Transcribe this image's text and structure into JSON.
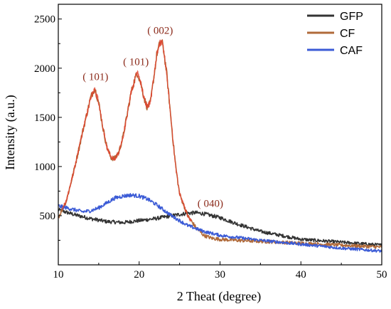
{
  "chart_data": {
    "type": "line",
    "xlabel": "2 Theat (degree)",
    "ylabel": "Intensity (a.u.)",
    "xlim": [
      10,
      50
    ],
    "ylim": [
      0,
      2650
    ],
    "x_ticks": [
      10,
      20,
      30,
      40,
      50
    ],
    "y_ticks": [
      500,
      1000,
      1500,
      2000,
      2500
    ],
    "grid": false,
    "legend_position": "top-right",
    "series": [
      {
        "name": "GFP",
        "color": "#333333",
        "x": [
          10,
          12,
          14,
          16,
          18,
          20,
          22,
          24,
          26,
          27,
          28,
          30,
          32,
          35,
          40,
          45,
          50
        ],
        "y": [
          560,
          510,
          470,
          440,
          430,
          450,
          470,
          500,
          525,
          530,
          520,
          480,
          420,
          340,
          260,
          230,
          200
        ]
      },
      {
        "name": "CF",
        "color": "#b06a3a",
        "x": [
          10,
          11,
          12,
          13,
          14,
          14.5,
          15,
          15.5,
          16,
          16.5,
          17,
          17.5,
          18,
          18.5,
          19,
          19.5,
          19.8,
          20.2,
          20.6,
          21,
          21.4,
          21.8,
          22.2,
          22.6,
          22.8,
          23,
          23.4,
          23.8,
          24.2,
          24.6,
          25,
          26,
          27,
          28,
          29,
          30,
          32,
          35,
          40,
          45,
          50
        ],
        "y": [
          480,
          650,
          980,
          1350,
          1700,
          1800,
          1650,
          1400,
          1200,
          1090,
          1080,
          1150,
          1300,
          1520,
          1750,
          1900,
          1950,
          1850,
          1700,
          1600,
          1650,
          1900,
          2150,
          2260,
          2270,
          2200,
          1950,
          1600,
          1250,
          950,
          720,
          500,
          380,
          300,
          270,
          260,
          250,
          240,
          220,
          200,
          180
        ]
      },
      {
        "name": "CAF",
        "color": "#3b5bd6",
        "x": [
          10,
          11,
          12,
          13,
          14,
          15,
          16,
          17,
          18,
          19,
          20,
          21,
          22,
          23,
          24,
          25,
          26,
          27,
          28,
          30,
          32,
          35,
          40,
          45,
          50
        ],
        "y": [
          600,
          580,
          560,
          540,
          550,
          580,
          630,
          680,
          700,
          710,
          700,
          670,
          620,
          560,
          500,
          450,
          400,
          370,
          340,
          300,
          280,
          250,
          210,
          170,
          140
        ]
      }
    ],
    "annotations": [
      {
        "text": "( 101)",
        "x": 14.6,
        "y": 1880
      },
      {
        "text": "( 101)",
        "x": 19.6,
        "y": 2030
      },
      {
        "text": "( 002)",
        "x": 22.6,
        "y": 2350
      },
      {
        "text": "( 040)",
        "x": 28.8,
        "y": 590
      }
    ]
  }
}
